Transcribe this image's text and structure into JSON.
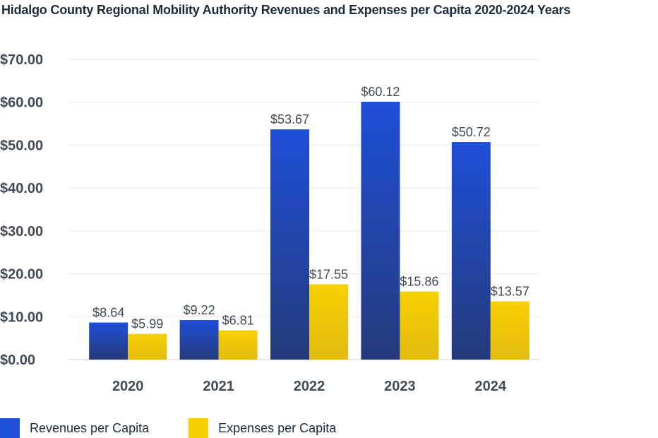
{
  "chart_data": {
    "type": "bar",
    "title": "Hidalgo County Regional Mobility Authority Revenues and Expenses per Capita 2020-2024 Years",
    "categories": [
      "2020",
      "2021",
      "2022",
      "2023",
      "2024"
    ],
    "series": [
      {
        "name": "Revenues per Capita",
        "values": [
          8.64,
          9.22,
          53.67,
          60.12,
          50.72
        ],
        "labels": [
          "$8.64",
          "$9.22",
          "$53.67",
          "$60.12",
          "$50.72"
        ],
        "color_top": "#1f4fd8",
        "color_bottom": "#243a7a"
      },
      {
        "name": "Expenses per Capita",
        "values": [
          5.99,
          6.81,
          17.55,
          15.86,
          13.57
        ],
        "labels": [
          "$5.99",
          "$6.81",
          "$17.55",
          "$15.86",
          "$13.57"
        ],
        "color_top": "#f7d000",
        "color_bottom": "#e3bb12"
      }
    ],
    "y_ticks": [
      "$0.00",
      "$10.00",
      "$20.00",
      "$30.00",
      "$40.00",
      "$50.00",
      "$60.00",
      "$70.00"
    ],
    "ylim": [
      0,
      70
    ],
    "grid": true,
    "legend_position": "bottom-left"
  }
}
